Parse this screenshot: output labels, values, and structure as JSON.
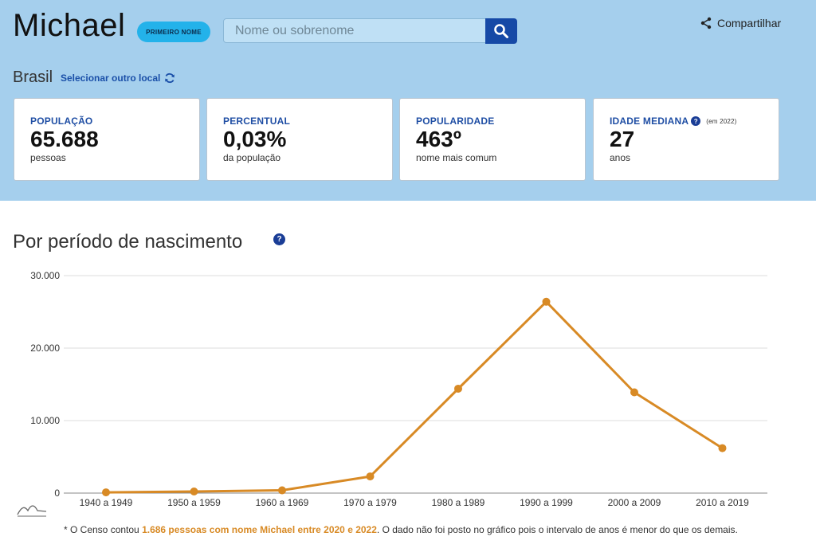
{
  "header": {
    "name": "Michael",
    "badge": "PRIMEIRO NOME",
    "search_placeholder": "Nome ou sobrenome",
    "share_label": "Compartilhar"
  },
  "location": {
    "current": "Brasil",
    "change_label": "Selecionar outro local"
  },
  "stats": [
    {
      "label": "POPULAÇÃO",
      "value": "65.688",
      "sub": "pessoas"
    },
    {
      "label": "PERCENTUAL",
      "value": "0,03%",
      "sub": "da população"
    },
    {
      "label": "POPULARIDADE",
      "value": "463º",
      "sub": "nome mais comum"
    },
    {
      "label": "IDADE MEDIANA",
      "value": "27",
      "sub": "anos",
      "note": "(em 2022)"
    }
  ],
  "section": {
    "title": "Por período de nascimento",
    "help": "?"
  },
  "chart_data": {
    "type": "line",
    "categories": [
      "1940 a 1949",
      "1950 a 1959",
      "1960 a 1969",
      "1970 a 1979",
      "1980 a 1989",
      "1990 a 1999",
      "2000 a 2009",
      "2010 a 2019"
    ],
    "series": [
      {
        "values": [
          100,
          220,
          380,
          2300,
          14400,
          26400,
          13900,
          6200
        ]
      }
    ],
    "ylim": [
      0,
      30000
    ],
    "yticks": [
      0,
      10000,
      20000,
      30000
    ],
    "ytick_labels": [
      "0",
      "10.000",
      "20.000",
      "30.000"
    ],
    "color": "#d88a25",
    "grid": true
  },
  "footnote": {
    "prefix": "* O Censo contou ",
    "highlight": "1.686 pessoas com nome Michael entre 2020 e 2022",
    "suffix": ". O dado não foi posto no gráfico pois o intervalo de anos é menor do que os demais."
  }
}
